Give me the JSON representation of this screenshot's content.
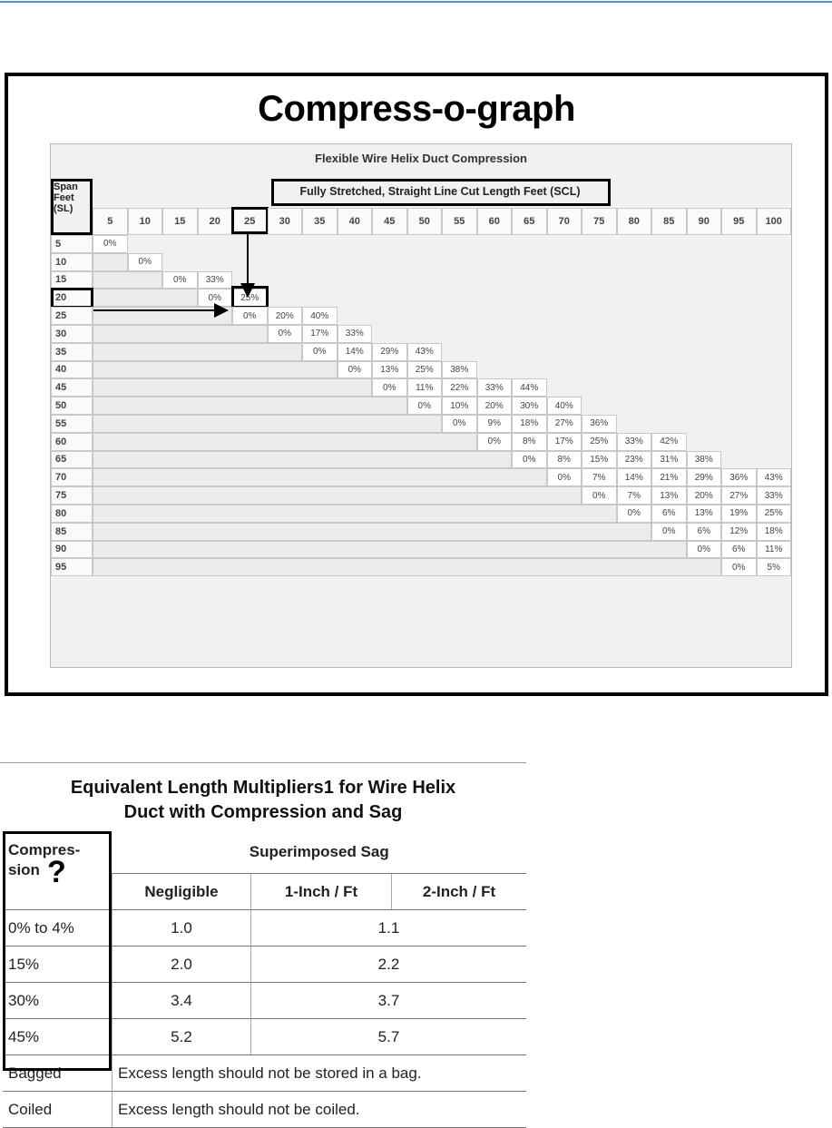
{
  "figure1": {
    "title": "Compress-o-graph",
    "table_title": "Flexible Wire Helix Duct Compression",
    "column_group_label": "Fully Stretched, Straight Line Cut Length Feet (SCL)",
    "row_header": "Span Feet (SL)",
    "columns": [
      "5",
      "10",
      "15",
      "20",
      "25",
      "30",
      "35",
      "40",
      "45",
      "50",
      "55",
      "60",
      "65",
      "70",
      "75",
      "80",
      "85",
      "90",
      "95",
      "100"
    ],
    "rows": [
      {
        "label": "5",
        "start": 0,
        "values": [
          "0%"
        ]
      },
      {
        "label": "10",
        "start": 1,
        "values": [
          "0%"
        ]
      },
      {
        "label": "15",
        "start": 2,
        "values": [
          "0%",
          "33%"
        ]
      },
      {
        "label": "20",
        "start": 3,
        "values": [
          "0%",
          "25%"
        ]
      },
      {
        "label": "25",
        "start": 4,
        "values": [
          "0%",
          "20%",
          "40%"
        ]
      },
      {
        "label": "30",
        "start": 5,
        "values": [
          "0%",
          "17%",
          "33%"
        ]
      },
      {
        "label": "35",
        "start": 6,
        "values": [
          "0%",
          "14%",
          "29%",
          "43%"
        ]
      },
      {
        "label": "40",
        "start": 7,
        "values": [
          "0%",
          "13%",
          "25%",
          "38%"
        ]
      },
      {
        "label": "45",
        "start": 8,
        "values": [
          "0%",
          "11%",
          "22%",
          "33%",
          "44%"
        ]
      },
      {
        "label": "50",
        "start": 9,
        "values": [
          "0%",
          "10%",
          "20%",
          "30%",
          "40%"
        ]
      },
      {
        "label": "55",
        "start": 10,
        "values": [
          "0%",
          "9%",
          "18%",
          "27%",
          "36%"
        ]
      },
      {
        "label": "60",
        "start": 11,
        "values": [
          "0%",
          "8%",
          "17%",
          "25%",
          "33%",
          "42%"
        ]
      },
      {
        "label": "65",
        "start": 12,
        "values": [
          "0%",
          "8%",
          "15%",
          "23%",
          "31%",
          "38%"
        ]
      },
      {
        "label": "70",
        "start": 13,
        "values": [
          "0%",
          "7%",
          "14%",
          "21%",
          "29%",
          "36%",
          "43%"
        ]
      },
      {
        "label": "75",
        "start": 14,
        "values": [
          "0%",
          "7%",
          "13%",
          "20%",
          "27%",
          "33%"
        ]
      },
      {
        "label": "80",
        "start": 15,
        "values": [
          "0%",
          "6%",
          "13%",
          "19%",
          "25%"
        ]
      },
      {
        "label": "85",
        "start": 16,
        "values": [
          "0%",
          "6%",
          "12%",
          "18%"
        ]
      },
      {
        "label": "90",
        "start": 17,
        "values": [
          "0%",
          "6%",
          "11%"
        ]
      },
      {
        "label": "95",
        "start": 18,
        "values": [
          "0%",
          "5%"
        ]
      }
    ],
    "highlight": {
      "column": "25",
      "row": "20",
      "value": "25%"
    }
  },
  "figure2": {
    "title_line1": "Equivalent Length Multipliers1 for Wire Helix",
    "title_line2": "Duct with Compression and Sag",
    "compression_header": "Compres- sion",
    "question_mark": "?",
    "sag_header": "Superimposed Sag",
    "sag_columns": [
      "Negligible",
      "1-Inch / Ft",
      "2-Inch / Ft"
    ],
    "rows": [
      {
        "compression": "0% to 4%",
        "negligible": "1.0",
        "with_sag": "1.1"
      },
      {
        "compression": "15%",
        "negligible": "2.0",
        "with_sag": "2.2"
      },
      {
        "compression": "30%",
        "negligible": "3.4",
        "with_sag": "3.7"
      },
      {
        "compression": "45%",
        "negligible": "5.2",
        "with_sag": "5.7"
      }
    ],
    "notes": [
      {
        "label": "Bagged",
        "text": "Excess length should not be stored in a bag."
      },
      {
        "label": "Coiled",
        "text": "Excess length should not be coiled."
      }
    ]
  }
}
